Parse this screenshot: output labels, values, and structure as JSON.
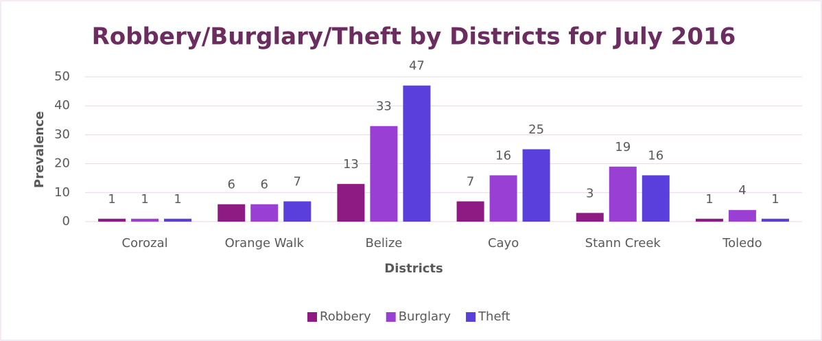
{
  "chart_data": {
    "type": "bar",
    "title": "Robbery/Burglary/Theft by Districts for July 2016",
    "x_label": "Districts",
    "y_label": "Prevalence",
    "categories": [
      "Corozal",
      "Orange Walk",
      "Belize",
      "Cayo",
      "Stann Creek",
      "Toledo"
    ],
    "series": [
      {
        "name": "Robbery",
        "color": "#8e1a84",
        "values": [
          1,
          6,
          13,
          7,
          3,
          1
        ]
      },
      {
        "name": "Burglary",
        "color": "#9a3fd4",
        "values": [
          1,
          6,
          33,
          16,
          19,
          4
        ]
      },
      {
        "name": "Theft",
        "color": "#5a3fdc",
        "values": [
          1,
          7,
          47,
          25,
          16,
          1
        ]
      }
    ],
    "ylim": [
      0,
      50
    ],
    "yticks": [
      0,
      10,
      20,
      30,
      40,
      50
    ],
    "grid": true,
    "legend": "bottom"
  }
}
